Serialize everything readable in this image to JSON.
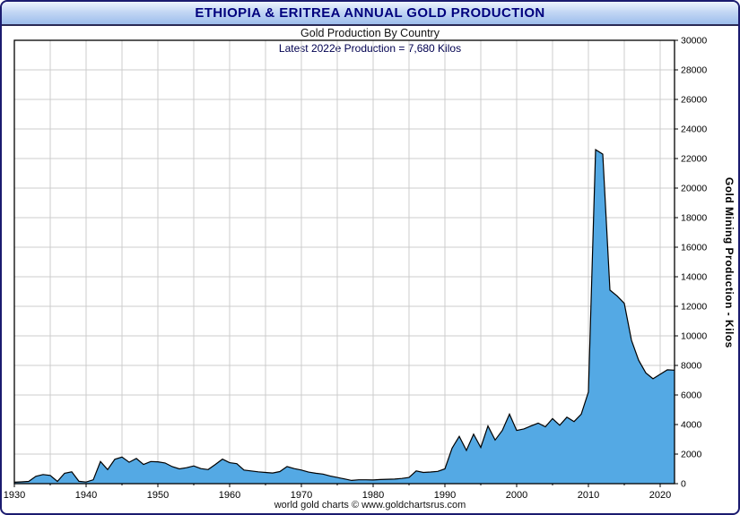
{
  "window": {
    "title": "ETHIOPIA & ERITREA ANNUAL GOLD PRODUCTION"
  },
  "chart": {
    "subtitle": "Gold Production By Country",
    "annotation": "Latest 2022e Production = 7,680 Kilos",
    "y_axis_label": "Gold Mining Production - Kilos",
    "footer": "world gold charts © www.goldchartsrus.com"
  },
  "chart_data": {
    "type": "area",
    "title": "Gold Production By Country",
    "annotation": "Latest 2022e Production = 7,680 Kilos",
    "series_name": "Ethiopia & Eritrea Annual Gold Production",
    "xlabel": "",
    "ylabel": "Gold Mining Production - Kilos",
    "x_start": 1930,
    "x_step": 1,
    "x_end": 2022,
    "ylim": [
      0,
      30000
    ],
    "y_tick_step": 2000,
    "x_tick_step": 10,
    "x_minor_step": 5,
    "grid": true,
    "latest_value": 7680,
    "values": [
      100,
      120,
      150,
      500,
      620,
      560,
      150,
      700,
      800,
      160,
      110,
      260,
      1500,
      950,
      1650,
      1800,
      1450,
      1700,
      1300,
      1500,
      1480,
      1400,
      1150,
      1000,
      1080,
      1200,
      1020,
      950,
      1300,
      1660,
      1420,
      1350,
      920,
      860,
      800,
      760,
      720,
      820,
      1160,
      1020,
      920,
      780,
      700,
      650,
      520,
      420,
      320,
      220,
      260,
      260,
      250,
      280,
      300,
      310,
      350,
      420,
      860,
      760,
      790,
      830,
      1000,
      2400,
      3200,
      2250,
      3350,
      2450,
      3900,
      2950,
      3600,
      4700,
      3600,
      3700,
      3900,
      4100,
      3850,
      4400,
      3950,
      4500,
      4200,
      4700,
      6200,
      22600,
      22300,
      13100,
      12700,
      12200,
      9700,
      8350,
      7500,
      7100,
      7400,
      7700,
      7680
    ],
    "colors": {
      "area_fill": "#54a9e4",
      "line": "#000000",
      "grid": "#cccccc",
      "axis": "#000000",
      "title_text": "#00007d"
    }
  }
}
